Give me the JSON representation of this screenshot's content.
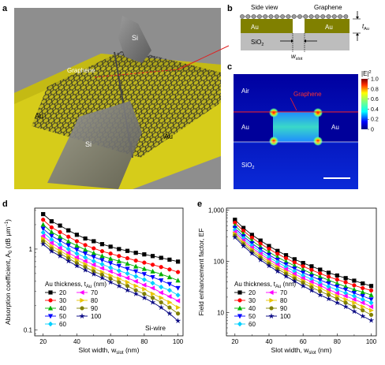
{
  "panels": {
    "a": {
      "letter": "a",
      "labels": {
        "si_top": "Si",
        "si_bottom": "Si",
        "graphene": "Graphene",
        "au_left": "Au",
        "au_right": "Au"
      }
    },
    "b": {
      "letter": "b",
      "labels": {
        "side_view": "Side view",
        "graphene": "Graphene",
        "au_left": "Au",
        "au_right": "Au",
        "sio2": "SiO",
        "sio2_sub": "2",
        "slot": "w",
        "slot_sub": "slot",
        "t": "t",
        "t_sub": "Au"
      }
    },
    "c": {
      "letter": "c",
      "labels": {
        "air": "Air",
        "graphene": "Graphene",
        "au_left": "Au",
        "au_right": "Au",
        "sio2": "SiO",
        "sio2_sub": "2",
        "cbar_title": "|E|",
        "cbar_sup": "2"
      },
      "colorbar_ticks": [
        "1.0",
        "0.8",
        "0.6",
        "0.4",
        "0.2",
        "0"
      ]
    }
  },
  "chart_data": [
    {
      "panel": "d",
      "type": "line",
      "title": "",
      "xlabel": "Slot width, w",
      "xlabel_sub": "slot",
      "xlabel_unit": " (nm)",
      "ylabel": "Absorption coefficient, A",
      "ylabel_sub": "0",
      "ylabel_unit": " (dB μm",
      "ylabel_sup": "−1",
      "ylabel_close": ")",
      "yscale": "log",
      "xlim": [
        15,
        103
      ],
      "ylim": [
        0.085,
        3.2
      ],
      "xticks": [
        20,
        40,
        60,
        80,
        100
      ],
      "yticks": [
        {
          "v": 1,
          "label": "1"
        },
        {
          "v": 0.1,
          "label": "0.1"
        }
      ],
      "legend_title": "Au thickness, t",
      "legend_title_sub": "Au",
      "legend_unit": " (nm)",
      "annotation": "Si-wire",
      "x": [
        20,
        25,
        30,
        35,
        40,
        45,
        50,
        55,
        60,
        65,
        70,
        75,
        80,
        85,
        90,
        95,
        100
      ],
      "series": [
        {
          "name": "20",
          "color": "#000000",
          "marker": "square",
          "values": [
            2.7,
            2.2,
            1.95,
            1.7,
            1.5,
            1.35,
            1.25,
            1.15,
            1.07,
            1.0,
            0.95,
            0.9,
            0.86,
            0.82,
            0.78,
            0.74,
            0.7
          ]
        },
        {
          "name": "30",
          "color": "#ff0000",
          "marker": "circle",
          "values": [
            2.3,
            1.85,
            1.62,
            1.42,
            1.25,
            1.12,
            1.02,
            0.94,
            0.88,
            0.82,
            0.77,
            0.72,
            0.68,
            0.64,
            0.6,
            0.56,
            0.52
          ]
        },
        {
          "name": "40",
          "color": "#00b000",
          "marker": "triangle",
          "values": [
            2.0,
            1.62,
            1.42,
            1.24,
            1.1,
            0.98,
            0.89,
            0.82,
            0.76,
            0.71,
            0.66,
            0.61,
            0.57,
            0.53,
            0.49,
            0.45,
            0.41
          ]
        },
        {
          "name": "50",
          "color": "#0000ff",
          "marker": "triangle-down",
          "values": [
            1.78,
            1.45,
            1.27,
            1.11,
            0.98,
            0.88,
            0.8,
            0.73,
            0.67,
            0.62,
            0.57,
            0.53,
            0.49,
            0.45,
            0.41,
            0.37,
            0.33
          ]
        },
        {
          "name": "60",
          "color": "#00d0ff",
          "marker": "diamond",
          "values": [
            1.6,
            1.31,
            1.14,
            1.0,
            0.88,
            0.79,
            0.71,
            0.65,
            0.59,
            0.54,
            0.5,
            0.46,
            0.42,
            0.38,
            0.34,
            0.31,
            0.27
          ]
        },
        {
          "name": "70",
          "color": "#ff00ff",
          "marker": "triangle-left",
          "values": [
            1.45,
            1.19,
            1.03,
            0.9,
            0.79,
            0.71,
            0.64,
            0.58,
            0.53,
            0.48,
            0.44,
            0.4,
            0.36,
            0.33,
            0.29,
            0.26,
            0.23
          ]
        },
        {
          "name": "80",
          "color": "#e8c400",
          "marker": "triangle-right",
          "values": [
            1.34,
            1.09,
            0.95,
            0.83,
            0.73,
            0.65,
            0.58,
            0.52,
            0.47,
            0.43,
            0.39,
            0.35,
            0.32,
            0.28,
            0.25,
            0.22,
            0.19
          ]
        },
        {
          "name": "90",
          "color": "#808000",
          "marker": "circle",
          "values": [
            1.24,
            1.01,
            0.88,
            0.77,
            0.67,
            0.6,
            0.53,
            0.48,
            0.43,
            0.39,
            0.35,
            0.31,
            0.28,
            0.25,
            0.22,
            0.19,
            0.16
          ]
        },
        {
          "name": "100",
          "color": "#000080",
          "marker": "star",
          "values": [
            1.15,
            0.94,
            0.82,
            0.71,
            0.62,
            0.55,
            0.49,
            0.44,
            0.39,
            0.35,
            0.31,
            0.28,
            0.25,
            0.22,
            0.19,
            0.16,
            0.13
          ]
        }
      ]
    },
    {
      "panel": "e",
      "type": "line",
      "title": "",
      "xlabel": "Slot width, w",
      "xlabel_sub": "slot",
      "xlabel_unit": " (nm)",
      "ylabel": "Field enhancement factor, EF",
      "yscale": "log",
      "xlim": [
        15,
        103
      ],
      "ylim": [
        3.5,
        1100
      ],
      "xticks": [
        20,
        40,
        60,
        80,
        100
      ],
      "yticks": [
        {
          "v": 1000,
          "label": "1,000"
        },
        {
          "v": 100,
          "label": "100"
        },
        {
          "v": 10,
          "label": "10"
        }
      ],
      "legend_title": "Au thickness, t",
      "legend_title_sub": "Au",
      "legend_unit": " (nm)",
      "x": [
        20,
        25,
        30,
        35,
        40,
        45,
        50,
        55,
        60,
        65,
        70,
        75,
        80,
        85,
        90,
        95,
        100
      ],
      "series": [
        {
          "name": "20",
          "color": "#000000",
          "marker": "square",
          "values": [
            650,
            450,
            330,
            255,
            200,
            160,
            132,
            110,
            93,
            80,
            69,
            60,
            53,
            47,
            42,
            37,
            33
          ]
        },
        {
          "name": "30",
          "color": "#ff0000",
          "marker": "circle",
          "values": [
            570,
            395,
            290,
            222,
            175,
            140,
            115,
            95,
            80,
            68,
            58,
            50,
            44,
            39,
            34,
            30,
            27
          ]
        },
        {
          "name": "40",
          "color": "#00b000",
          "marker": "triangle",
          "values": [
            500,
            345,
            253,
            193,
            152,
            121,
            99,
            82,
            69,
            58,
            50,
            43,
            37,
            32,
            28,
            25,
            22
          ]
        },
        {
          "name": "50",
          "color": "#0000ff",
          "marker": "triangle-down",
          "values": [
            450,
            308,
            225,
            171,
            134,
            107,
            87,
            72,
            60,
            51,
            43,
            37,
            32,
            28,
            24,
            21,
            18
          ]
        },
        {
          "name": "60",
          "color": "#00d0ff",
          "marker": "diamond",
          "values": [
            410,
            280,
            203,
            154,
            120,
            96,
            78,
            64,
            53,
            45,
            38,
            32,
            28,
            24,
            21,
            18,
            15.5
          ]
        },
        {
          "name": "70",
          "color": "#ff00ff",
          "marker": "triangle-left",
          "values": [
            375,
            256,
            185,
            140,
            109,
            86,
            70,
            57,
            47,
            40,
            34,
            28,
            24,
            21,
            18,
            15.5,
            13
          ]
        },
        {
          "name": "80",
          "color": "#e8c400",
          "marker": "triangle-right",
          "values": [
            345,
            235,
            170,
            128,
            99,
            78,
            63,
            51,
            42,
            35,
            30,
            25,
            21,
            18,
            15.5,
            13,
            11
          ]
        },
        {
          "name": "90",
          "color": "#808000",
          "marker": "circle",
          "values": [
            320,
            217,
            156,
            117,
            90,
            71,
            57,
            46,
            38,
            31,
            26,
            22,
            18.5,
            15.5,
            13,
            11,
            9
          ]
        },
        {
          "name": "100",
          "color": "#000080",
          "marker": "star",
          "values": [
            295,
            200,
            143,
            107,
            82,
            64,
            51,
            41,
            33,
            27,
            22,
            18.5,
            15.5,
            13,
            10.5,
            8.5,
            7
          ]
        }
      ]
    }
  ],
  "colors": {
    "gold": "#c9c100",
    "au_dark": "#808000",
    "sio2": "#bdbdbd",
    "field_bg": "#0000a0",
    "graphene_line": "#ff2020"
  }
}
